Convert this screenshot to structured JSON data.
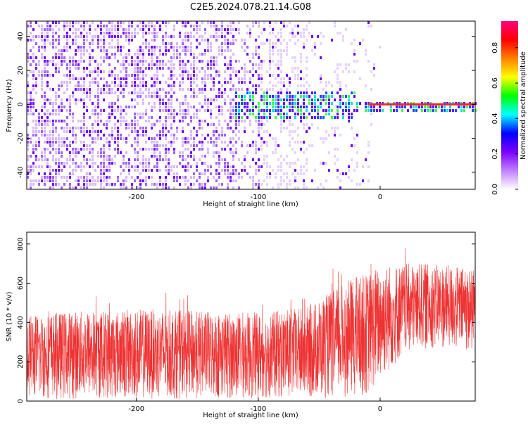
{
  "title": "C2E5.2024.078.21.14.G08",
  "chart_data": [
    {
      "type": "heatmap",
      "xlabel": "Height of straight line (km)",
      "ylabel": "Frequency (Hz)",
      "xlim": [
        -290,
        78
      ],
      "ylim": [
        -50,
        49
      ],
      "xticks": [
        "-200",
        "-100",
        "0"
      ],
      "xtick_values": [
        -200,
        -100,
        0
      ],
      "yticks": [
        "-40",
        "-20",
        "0",
        "20",
        "40"
      ],
      "ytick_values": [
        -40,
        -20,
        0,
        20,
        40
      ],
      "colorbar": {
        "label": "Normalized spectral amplitude",
        "range": [
          0,
          0.95
        ],
        "ticks": [
          "0.0",
          "0.2",
          "0.4",
          "0.6",
          "0.8"
        ],
        "tick_values": [
          0.0,
          0.2,
          0.4,
          0.6,
          0.8
        ],
        "colors": [
          "#ffffff",
          "#c080ff",
          "#7a00ff",
          "#0000ff",
          "#00ffff",
          "#00ff00",
          "#ffff00",
          "#ff8000",
          "#ff0000",
          "#ff0080"
        ]
      },
      "signal_line": {
        "y": 0,
        "x_from": -10,
        "x_to": 78,
        "color": "#ff2020"
      }
    },
    {
      "type": "line",
      "xlabel": "Height of straight line (km)",
      "ylabel": "SNR (10 * v/v)",
      "xlim": [
        -290,
        78
      ],
      "ylim": [
        0,
        860
      ],
      "xticks": [
        "-200",
        "-100",
        "0"
      ],
      "xtick_values": [
        -200,
        -100,
        0
      ],
      "yticks": [
        "0",
        "200",
        "400",
        "600",
        "800"
      ],
      "ytick_values": [
        0,
        200,
        400,
        600,
        800
      ],
      "color": "#ee3333",
      "envelope": {
        "x": [
          -290,
          -250,
          -200,
          -150,
          -100,
          -60,
          -40,
          -20,
          -10,
          0,
          20,
          40,
          60,
          78
        ],
        "upper": [
          440,
          460,
          470,
          460,
          450,
          480,
          560,
          640,
          650,
          700,
          700,
          700,
          690,
          670
        ],
        "lower": [
          10,
          10,
          10,
          10,
          10,
          10,
          15,
          20,
          30,
          100,
          230,
          270,
          260,
          250
        ]
      }
    }
  ]
}
